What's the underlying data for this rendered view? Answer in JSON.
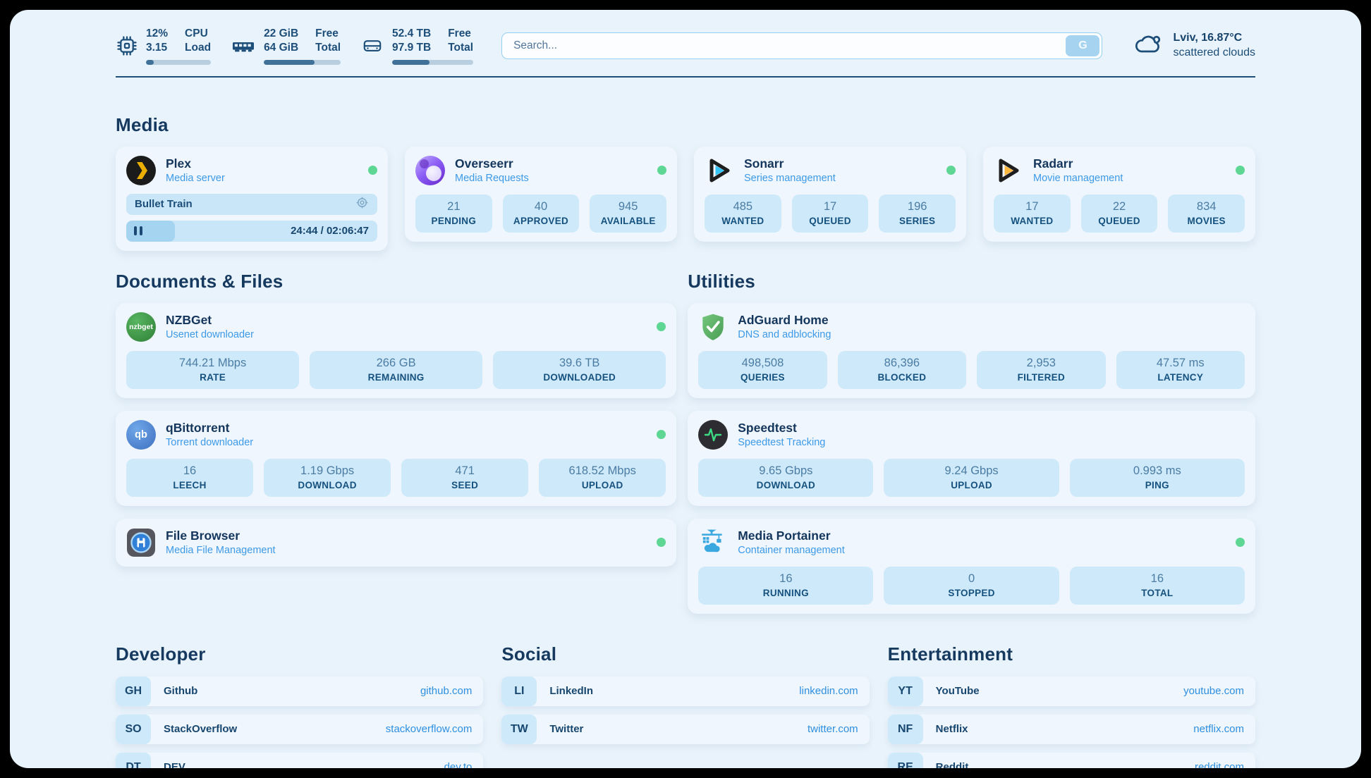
{
  "colors": {
    "accent_blue": "#2E8FE0",
    "status_green": "#5ED694",
    "navy": "#1D4E79",
    "page_bg": "#E9F3FB"
  },
  "header": {
    "metrics": [
      {
        "icon": "cpu-icon",
        "value_top": "12%",
        "value_bottom": "3.15",
        "label_top": "CPU",
        "label_bottom": "Load",
        "progress": 12
      },
      {
        "icon": "ram-icon",
        "value_top": "22 GiB",
        "value_bottom": "64 GiB",
        "label_top": "Free",
        "label_bottom": "Total",
        "progress": 66
      },
      {
        "icon": "disk-icon",
        "value_top": "52.4 TB",
        "value_bottom": "97.9 TB",
        "label_top": "Free",
        "label_bottom": "Total",
        "progress": 46
      }
    ],
    "search": {
      "placeholder": "Search...",
      "button_label": "G"
    },
    "weather": {
      "icon": "cloud-icon",
      "line1": "Lviv, 16.87°C",
      "line2": "scattered clouds"
    }
  },
  "sections": {
    "media": "Media",
    "documents": "Documents & Files",
    "utilities": "Utilities",
    "developer": "Developer",
    "social": "Social",
    "entertainment": "Entertainment"
  },
  "services": {
    "plex": {
      "icon": "plex-icon",
      "name": "Plex",
      "desc": "Media server",
      "now_playing": "Bullet Train",
      "time": "24:44 / 02:06:47",
      "progress": 19.5
    },
    "overseerr": {
      "icon": "overseerr-icon",
      "name": "Overseerr",
      "desc": "Media Requests",
      "stats": [
        {
          "value": "21",
          "label": "PENDING"
        },
        {
          "value": "40",
          "label": "APPROVED"
        },
        {
          "value": "945",
          "label": "AVAILABLE"
        }
      ]
    },
    "sonarr": {
      "icon": "sonarr-icon",
      "name": "Sonarr",
      "desc": "Series management",
      "stats": [
        {
          "value": "485",
          "label": "WANTED"
        },
        {
          "value": "17",
          "label": "QUEUED"
        },
        {
          "value": "196",
          "label": "SERIES"
        }
      ]
    },
    "radarr": {
      "icon": "radarr-icon",
      "name": "Radarr",
      "desc": "Movie management",
      "stats": [
        {
          "value": "17",
          "label": "WANTED"
        },
        {
          "value": "22",
          "label": "QUEUED"
        },
        {
          "value": "834",
          "label": "MOVIES"
        }
      ]
    },
    "nzbget": {
      "icon": "nzbget-icon",
      "icon_text": "nzbget",
      "name": "NZBGet",
      "desc": "Usenet downloader",
      "stats": [
        {
          "value": "744.21 Mbps",
          "label": "RATE"
        },
        {
          "value": "266 GB",
          "label": "REMAINING"
        },
        {
          "value": "39.6 TB",
          "label": "DOWNLOADED"
        }
      ]
    },
    "qbittorrent": {
      "icon": "qbittorrent-icon",
      "icon_text": "qb",
      "name": "qBittorrent",
      "desc": "Torrent downloader",
      "stats": [
        {
          "value": "16",
          "label": "LEECH"
        },
        {
          "value": "1.19 Gbps",
          "label": "DOWNLOAD"
        },
        {
          "value": "471",
          "label": "SEED"
        },
        {
          "value": "618.52 Mbps",
          "label": "UPLOAD"
        }
      ]
    },
    "filebrowser": {
      "icon": "filebrowser-icon",
      "name": "File Browser",
      "desc": "Media File Management"
    },
    "adguard": {
      "icon": "adguard-icon",
      "name": "AdGuard Home",
      "desc": "DNS and adblocking",
      "stats": [
        {
          "value": "498,508",
          "label": "QUERIES"
        },
        {
          "value": "86,396",
          "label": "BLOCKED"
        },
        {
          "value": "2,953",
          "label": "FILTERED"
        },
        {
          "value": "47.57 ms",
          "label": "LATENCY"
        }
      ]
    },
    "speedtest": {
      "icon": "speedtest-icon",
      "name": "Speedtest",
      "desc": "Speedtest Tracking",
      "stats": [
        {
          "value": "9.65 Gbps",
          "label": "DOWNLOAD"
        },
        {
          "value": "9.24 Gbps",
          "label": "UPLOAD"
        },
        {
          "value": "0.993 ms",
          "label": "PING"
        }
      ]
    },
    "portainer": {
      "icon": "portainer-icon",
      "name": "Media Portainer",
      "desc": "Container management",
      "stats": [
        {
          "value": "16",
          "label": "RUNNING"
        },
        {
          "value": "0",
          "label": "STOPPED"
        },
        {
          "value": "16",
          "label": "TOTAL"
        }
      ]
    }
  },
  "links": {
    "developer": {
      "items": [
        {
          "abbr": "GH",
          "name": "Github",
          "url": "github.com"
        },
        {
          "abbr": "SO",
          "name": "StackOverflow",
          "url": "stackoverflow.com"
        },
        {
          "abbr": "DT",
          "name": "DEV",
          "url": "dev.to"
        }
      ]
    },
    "social": {
      "items": [
        {
          "abbr": "LI",
          "name": "LinkedIn",
          "url": "linkedin.com"
        },
        {
          "abbr": "TW",
          "name": "Twitter",
          "url": "twitter.com"
        }
      ]
    },
    "entertainment": {
      "items": [
        {
          "abbr": "YT",
          "name": "YouTube",
          "url": "youtube.com"
        },
        {
          "abbr": "NF",
          "name": "Netflix",
          "url": "netflix.com"
        },
        {
          "abbr": "RE",
          "name": "Reddit",
          "url": "reddit.com"
        }
      ]
    }
  }
}
